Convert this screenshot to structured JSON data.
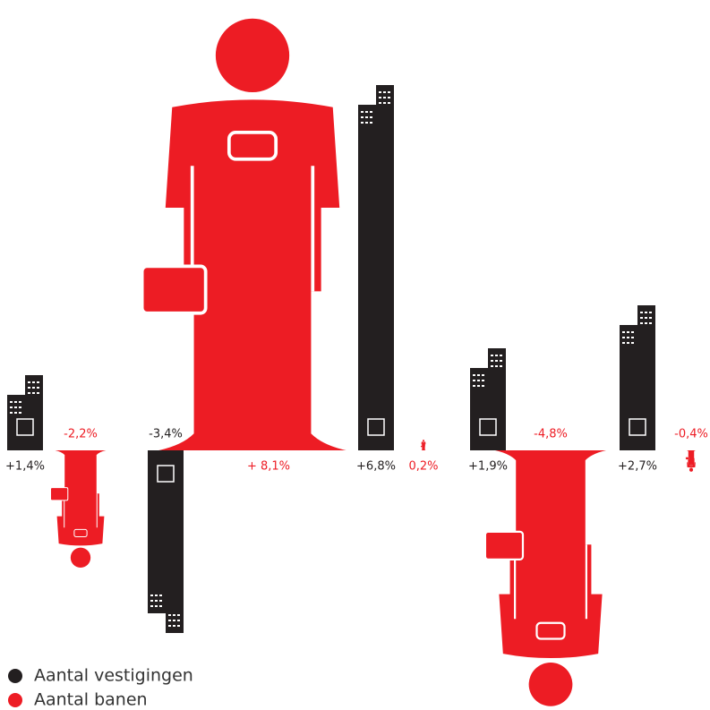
{
  "chart_data": {
    "type": "pictogram",
    "categories": [
      null,
      null,
      null,
      null,
      null
    ],
    "series": [
      {
        "name": "Aantal vestigingen",
        "color": "#231f20",
        "values": [
          1.4,
          -3.4,
          6.8,
          1.9,
          2.7
        ],
        "value_labels": [
          "+1,4%",
          "-3,4%",
          "+6,8%",
          "+1,9%",
          "+2,7%"
        ]
      },
      {
        "name": "Aantal banen",
        "color": "#ed1c24",
        "values": [
          -2.2,
          8.1,
          0.2,
          -4.8,
          -0.4
        ],
        "value_labels": [
          "-2,2%",
          "+ 8,1%",
          "0,2%",
          "-4,8%",
          "-0,4%"
        ]
      }
    ]
  }
}
